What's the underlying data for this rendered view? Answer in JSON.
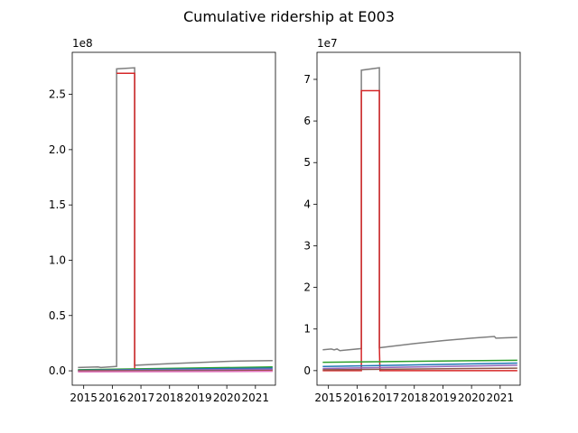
{
  "figure": {
    "title": "Cumulative ridership at E003"
  },
  "chart_data": [
    {
      "type": "line",
      "title": "",
      "xlabel": "",
      "ylabel": "",
      "x_ticks": [
        "2015",
        "2016",
        "2017",
        "2018",
        "2019",
        "2020",
        "2021"
      ],
      "y_ticks": [
        "0.0",
        "0.5",
        "1.0",
        "1.5",
        "2.0",
        "2.5"
      ],
      "y_offset_label": "1e8",
      "xlim": [
        2014.6,
        2021.7
      ],
      "ylim": [
        -0.13,
        2.88
      ],
      "grid": false,
      "series": [
        {
          "color": "#7f7f7f",
          "points": [
            [
              2014.8,
              0.03
            ],
            [
              2015.5,
              0.035
            ],
            [
              2015.6,
              0.03
            ],
            [
              2016.15,
              0.04
            ],
            [
              2016.15,
              2.73
            ],
            [
              2016.78,
              2.74
            ],
            [
              2016.78,
              0.05
            ],
            [
              2018,
              0.065
            ],
            [
              2019,
              0.075
            ],
            [
              2020,
              0.085
            ],
            [
              2020.4,
              0.088
            ],
            [
              2021,
              0.09
            ],
            [
              2021.6,
              0.092
            ]
          ]
        },
        {
          "color": "#d62728",
          "points": [
            [
              2016.15,
              2.69
            ],
            [
              2016.78,
              2.69
            ],
            [
              2016.78,
              0.01
            ],
            [
              2021.6,
              0.01
            ]
          ]
        },
        {
          "color": "#2ca02c",
          "points": [
            [
              2014.8,
              0.01
            ],
            [
              2021.6,
              0.035
            ]
          ]
        },
        {
          "color": "#1f77b4",
          "points": [
            [
              2014.8,
              0.005
            ],
            [
              2021.6,
              0.025
            ]
          ]
        },
        {
          "color": "#9467bd",
          "points": [
            [
              2014.8,
              0.002
            ],
            [
              2021.6,
              0.015
            ]
          ]
        },
        {
          "color": "#8c564b",
          "points": [
            [
              2014.8,
              0.0
            ],
            [
              2021.6,
              0.0
            ]
          ]
        },
        {
          "color": "#e377c2",
          "points": [
            [
              2014.8,
              -0.01
            ],
            [
              2021.6,
              -0.005
            ]
          ]
        }
      ]
    },
    {
      "type": "line",
      "title": "",
      "xlabel": "",
      "ylabel": "",
      "x_ticks": [
        "2015",
        "2016",
        "2017",
        "2018",
        "2019",
        "2020",
        "2021"
      ],
      "y_ticks": [
        "0",
        "1",
        "2",
        "3",
        "4",
        "5",
        "6",
        "7"
      ],
      "y_offset_label": "1e7",
      "xlim": [
        2014.6,
        2021.7
      ],
      "ylim": [
        -0.35,
        7.65
      ],
      "grid": false,
      "series": [
        {
          "color": "#7f7f7f",
          "points": [
            [
              2014.8,
              0.5
            ],
            [
              2015.1,
              0.52
            ],
            [
              2015.2,
              0.5
            ],
            [
              2015.3,
              0.52
            ],
            [
              2015.4,
              0.48
            ],
            [
              2016.15,
              0.53
            ],
            [
              2016.15,
              7.22
            ],
            [
              2016.78,
              7.28
            ],
            [
              2016.78,
              0.55
            ],
            [
              2018,
              0.65
            ],
            [
              2019,
              0.72
            ],
            [
              2020,
              0.78
            ],
            [
              2020.8,
              0.82
            ],
            [
              2020.85,
              0.78
            ],
            [
              2021.6,
              0.8
            ]
          ]
        },
        {
          "color": "#d62728",
          "points": [
            [
              2014.8,
              0.0
            ],
            [
              2016.15,
              0.0
            ],
            [
              2016.15,
              6.73
            ],
            [
              2016.78,
              6.73
            ],
            [
              2016.78,
              0.55
            ],
            [
              2016.8,
              0.0
            ],
            [
              2021.6,
              0.0
            ]
          ]
        },
        {
          "color": "#2ca02c",
          "points": [
            [
              2014.8,
              0.2
            ],
            [
              2021.6,
              0.25
            ]
          ]
        },
        {
          "color": "#1f77b4",
          "points": [
            [
              2014.8,
              0.1
            ],
            [
              2021.6,
              0.18
            ]
          ]
        },
        {
          "color": "#9467bd",
          "points": [
            [
              2014.8,
              0.05
            ],
            [
              2021.6,
              0.13
            ]
          ]
        },
        {
          "color": "#8c564b",
          "points": [
            [
              2014.8,
              0.02
            ],
            [
              2021.6,
              0.06
            ]
          ]
        }
      ]
    }
  ]
}
